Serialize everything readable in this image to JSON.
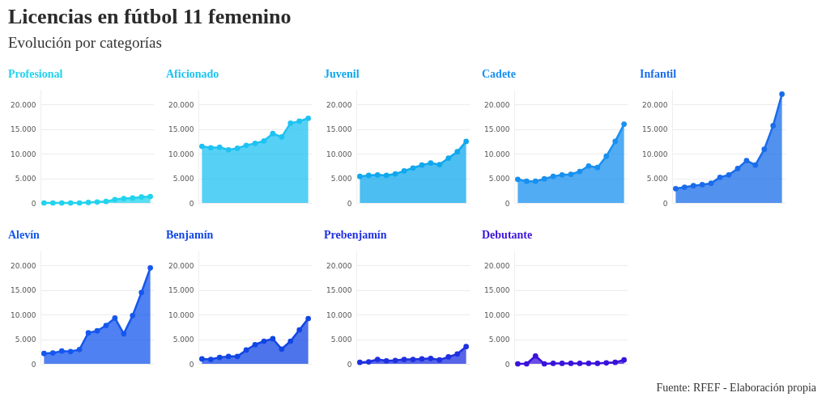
{
  "chart_data": [
    {
      "type": "area",
      "title": "Licencias en fútbol 11 femenino",
      "subtitle": "Evolución por categorías",
      "legend_title": "Profesional",
      "categories": [
        null,
        null,
        null,
        null,
        null,
        null,
        null,
        null,
        null,
        null,
        null,
        null,
        null
      ],
      "series": [
        {
          "color": "#22d3ee",
          "values": [
            0,
            0,
            0,
            0,
            0,
            100,
            200,
            300,
            700,
            900,
            1000,
            1200,
            1300
          ]
        }
      ],
      "ylim": [
        0,
        23000
      ],
      "yticks": [
        {
          "value": 0,
          "label": "0"
        },
        {
          "value": 5000,
          "label": "5.000"
        },
        {
          "value": 10000,
          "label": "10.000"
        },
        {
          "value": 15000,
          "label": "15.000"
        },
        {
          "value": 20000,
          "label": "20.000"
        }
      ],
      "grid": "y",
      "marker": "circle"
    },
    {
      "type": "area",
      "legend_title": "Aficionado",
      "categories": [
        null,
        null,
        null,
        null,
        null,
        null,
        null,
        null,
        null,
        null,
        null,
        null,
        null
      ],
      "series": [
        {
          "color": "#1ec2f2",
          "values": [
            11500,
            11200,
            11300,
            10800,
            11100,
            11700,
            12100,
            12600,
            14100,
            13400,
            16200,
            16600,
            17200
          ]
        }
      ],
      "ylim": [
        0,
        23000
      ],
      "yticks": [
        {
          "value": 0,
          "label": "0"
        },
        {
          "value": 5000,
          "label": "5.000"
        },
        {
          "value": 10000,
          "label": "10.000"
        },
        {
          "value": 15000,
          "label": "15.000"
        },
        {
          "value": 20000,
          "label": "20.000"
        }
      ],
      "grid": "y",
      "marker": "circle"
    },
    {
      "type": "area",
      "legend_title": "Juvenil",
      "categories": [
        null,
        null,
        null,
        null,
        null,
        null,
        null,
        null,
        null,
        null,
        null,
        null,
        null
      ],
      "series": [
        {
          "color": "#10a8ee",
          "values": [
            5400,
            5600,
            5700,
            5600,
            5900,
            6500,
            7100,
            7700,
            8100,
            7800,
            9100,
            10400,
            12500
          ]
        }
      ],
      "ylim": [
        0,
        23000
      ],
      "yticks": [
        {
          "value": 0,
          "label": "0"
        },
        {
          "value": 5000,
          "label": "5.000"
        },
        {
          "value": 10000,
          "label": "10.000"
        },
        {
          "value": 15000,
          "label": "15.000"
        },
        {
          "value": 20000,
          "label": "20.000"
        }
      ],
      "grid": "y",
      "marker": "circle"
    },
    {
      "type": "area",
      "legend_title": "Cadete",
      "categories": [
        null,
        null,
        null,
        null,
        null,
        null,
        null,
        null,
        null,
        null,
        null,
        null,
        null
      ],
      "series": [
        {
          "color": "#1890f0",
          "values": [
            4800,
            4400,
            4400,
            4900,
            5400,
            5700,
            5800,
            6400,
            7500,
            7200,
            9500,
            12500,
            16000
          ]
        }
      ],
      "ylim": [
        0,
        23000
      ],
      "yticks": [
        {
          "value": 0,
          "label": "0"
        },
        {
          "value": 5000,
          "label": "5.000"
        },
        {
          "value": 10000,
          "label": "10.000"
        },
        {
          "value": 15000,
          "label": "15.000"
        },
        {
          "value": 20000,
          "label": "20.000"
        }
      ],
      "grid": "y",
      "marker": "circle"
    },
    {
      "type": "area",
      "legend_title": "Infantil",
      "categories": [
        null,
        null,
        null,
        null,
        null,
        null,
        null,
        null,
        null,
        null,
        null,
        null,
        null
      ],
      "series": [
        {
          "color": "#1a6cea",
          "values": [
            2900,
            3200,
            3500,
            3700,
            4000,
            5200,
            5700,
            7000,
            8600,
            7700,
            10900,
            15700,
            22100
          ]
        }
      ],
      "ylim": [
        0,
        23000
      ],
      "yticks": [
        {
          "value": 0,
          "label": "0"
        },
        {
          "value": 5000,
          "label": "5.000"
        },
        {
          "value": 10000,
          "label": "10.000"
        },
        {
          "value": 15000,
          "label": "15.000"
        },
        {
          "value": 20000,
          "label": "20.000"
        }
      ],
      "grid": "y",
      "marker": "circle"
    },
    {
      "type": "area",
      "legend_title": "Alevín",
      "categories": [
        null,
        null,
        null,
        null,
        null,
        null,
        null,
        null,
        null,
        null,
        null,
        null,
        null
      ],
      "series": [
        {
          "color": "#1557ee",
          "values": [
            2100,
            2200,
            2600,
            2500,
            2900,
            6300,
            6700,
            7800,
            9300,
            6100,
            9800,
            14500,
            19500
          ]
        }
      ],
      "ylim": [
        0,
        23000
      ],
      "yticks": [
        {
          "value": 0,
          "label": "0"
        },
        {
          "value": 5000,
          "label": "5.000"
        },
        {
          "value": 10000,
          "label": "10.000"
        },
        {
          "value": 15000,
          "label": "15.000"
        },
        {
          "value": 20000,
          "label": "20.000"
        }
      ],
      "grid": "y",
      "marker": "circle"
    },
    {
      "type": "area",
      "legend_title": "Benjamín",
      "categories": [
        null,
        null,
        null,
        null,
        null,
        null,
        null,
        null,
        null,
        null,
        null,
        null,
        null
      ],
      "series": [
        {
          "color": "#1146e4",
          "values": [
            1000,
            900,
            1300,
            1500,
            1500,
            2800,
            3900,
            4600,
            5100,
            3000,
            4600,
            6900,
            9200
          ]
        }
      ],
      "ylim": [
        0,
        23000
      ],
      "yticks": [
        {
          "value": 0,
          "label": "0"
        },
        {
          "value": 5000,
          "label": "5.000"
        },
        {
          "value": 10000,
          "label": "10.000"
        },
        {
          "value": 15000,
          "label": "15.000"
        },
        {
          "value": 20000,
          "label": "20.000"
        }
      ],
      "grid": "y",
      "marker": "circle"
    },
    {
      "type": "area",
      "legend_title": "Prebenjamín",
      "categories": [
        null,
        null,
        null,
        null,
        null,
        null,
        null,
        null,
        null,
        null,
        null,
        null,
        null
      ],
      "series": [
        {
          "color": "#1e30e0",
          "values": [
            300,
            400,
            900,
            600,
            700,
            900,
            900,
            1000,
            1100,
            800,
            1400,
            2000,
            3500
          ]
        }
      ],
      "ylim": [
        0,
        23000
      ],
      "yticks": [
        {
          "value": 0,
          "label": "0"
        },
        {
          "value": 5000,
          "label": "5.000"
        },
        {
          "value": 10000,
          "label": "10.000"
        },
        {
          "value": 15000,
          "label": "15.000"
        },
        {
          "value": 20000,
          "label": "20.000"
        }
      ],
      "grid": "y",
      "marker": "circle"
    },
    {
      "type": "area",
      "legend_title": "Debutante",
      "categories": [
        null,
        null,
        null,
        null,
        null,
        null,
        null,
        null,
        null,
        null,
        null,
        null,
        null
      ],
      "series": [
        {
          "color": "#3a12dc",
          "values": [
            0,
            0,
            1600,
            0,
            100,
            100,
            100,
            100,
            100,
            100,
            200,
            300,
            800
          ]
        }
      ],
      "ylim": [
        0,
        23000
      ],
      "yticks": [
        {
          "value": 0,
          "label": "0"
        },
        {
          "value": 5000,
          "label": "5.000"
        },
        {
          "value": 10000,
          "label": "10.000"
        },
        {
          "value": 15000,
          "label": "15.000"
        },
        {
          "value": 20000,
          "label": "20.000"
        }
      ],
      "grid": "y",
      "marker": "circle",
      "annotations": [
        "Fuente: RFEF - Elaboración propia"
      ]
    }
  ]
}
